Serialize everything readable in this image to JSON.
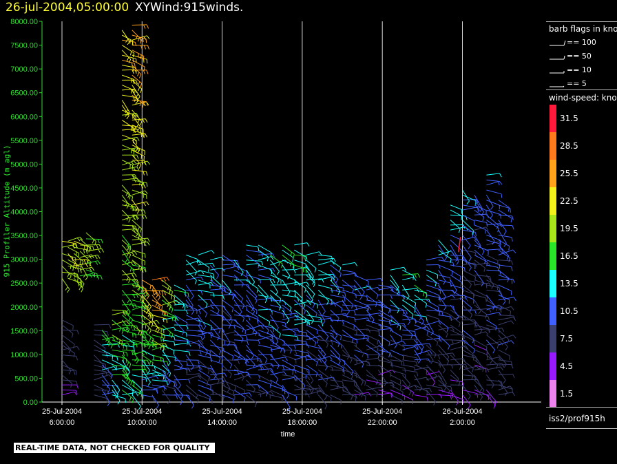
{
  "header": {
    "date": "26-jul-2004,05:00:00",
    "product": "XYWind:915winds."
  },
  "chart_data": {
    "type": "scatter",
    "title": "XYWind:915winds.",
    "xlabel": "time",
    "ylabel": "915 Profiler Altitude (m agl)",
    "x_ticks": [
      {
        "date": "25-Jul-2004",
        "time": "6:00:00"
      },
      {
        "date": "25-Jul-2004",
        "time": "10:00:00"
      },
      {
        "date": "25-Jul-2004",
        "time": "14:00:00"
      },
      {
        "date": "25-Jul-2004",
        "time": "18:00:00"
      },
      {
        "date": "25-Jul-2004",
        "time": "22:00:00"
      },
      {
        "date": "26-Jul-2004",
        "time": "2:00:00"
      }
    ],
    "y_ticks": [
      "0.00",
      "500.00",
      "1000.00",
      "1500.00",
      "2000.00",
      "2500.00",
      "3000.00",
      "3500.00",
      "4000.00",
      "4500.00",
      "5000.00",
      "5500.00",
      "6000.00",
      "6500.00",
      "7000.00",
      "7500.00",
      "8000.00"
    ],
    "ylim": [
      0,
      8000
    ],
    "grid": "vertical lines at x ticks",
    "legend_placement": "right",
    "series": [
      {
        "profiles": [
          {
            "h": 6.0,
            "top": 1800,
            "low": 6,
            "up": 9
          },
          {
            "h": 6.0,
            "range": [
              2600,
              3400
            ],
            "low": 19,
            "up": 22
          },
          {
            "h": 6.3,
            "range": [
              2600,
              3400
            ],
            "low": 19,
            "up": 22
          },
          {
            "h": 6.6,
            "range": [
              2600,
              3400
            ],
            "low": 19,
            "up": 22
          },
          {
            "h": 6.9,
            "range": [
              2650,
              3550
            ],
            "low": 18,
            "up": 21
          },
          {
            "h": 7.2,
            "range": [
              2650,
              3600
            ],
            "low": 17,
            "up": 19
          },
          {
            "h": 7.6,
            "top": 1700,
            "low": 6,
            "up": 9
          },
          {
            "h": 8.0,
            "top": 1600,
            "low": 9,
            "up": 18
          },
          {
            "h": 8.5,
            "top": 2000,
            "low": 12,
            "up": 20
          },
          {
            "h": 9.0,
            "top": 7900,
            "low": 14,
            "up": 24
          },
          {
            "h": 9.5,
            "top": 8000,
            "low": 15,
            "up": 25
          },
          {
            "h": 10.0,
            "top": 2600,
            "low": 10,
            "up": 26
          },
          {
            "h": 10.5,
            "top": 2600,
            "low": 10,
            "up": 28
          },
          {
            "h": 11.0,
            "top": 2600,
            "low": 8,
            "up": 20
          },
          {
            "h": 11.6,
            "top": 2500,
            "low": 9,
            "up": 14
          },
          {
            "h": 12.2,
            "top": 3100,
            "low": 8,
            "up": 13
          },
          {
            "h": 12.8,
            "top": 3100,
            "low": 8,
            "up": 14
          },
          {
            "h": 13.4,
            "top": 3000,
            "low": 8,
            "up": 12
          },
          {
            "h": 14.0,
            "top": 3100,
            "low": 8,
            "up": 12
          },
          {
            "h": 14.6,
            "top": 3000,
            "low": 8,
            "up": 13
          },
          {
            "h": 15.2,
            "top": 3300,
            "low": 9,
            "up": 12
          },
          {
            "h": 15.8,
            "top": 3300,
            "low": 9,
            "up": 13
          },
          {
            "h": 16.4,
            "top": 3100,
            "low": 8,
            "up": 14
          },
          {
            "h": 17.0,
            "top": 3300,
            "low": 8,
            "up": 15
          },
          {
            "h": 17.6,
            "top": 3400,
            "low": 8,
            "up": 16
          },
          {
            "h": 18.2,
            "top": 3100,
            "low": 7,
            "up": 15
          },
          {
            "h": 18.8,
            "top": 3100,
            "low": 7,
            "up": 14
          },
          {
            "h": 19.4,
            "top": 3000,
            "low": 7,
            "up": 13
          },
          {
            "h": 20.0,
            "top": 2900,
            "low": 7,
            "up": 12
          },
          {
            "h": 20.6,
            "top": 2700,
            "low": 7,
            "up": 12
          },
          {
            "h": 21.2,
            "top": 2600,
            "low": 6,
            "up": 11
          },
          {
            "h": 21.8,
            "top": 2500,
            "low": 6,
            "up": 12
          },
          {
            "h": 22.4,
            "top": 2800,
            "low": 6,
            "up": 14
          },
          {
            "h": 23.0,
            "top": 2800,
            "low": 6,
            "up": 15
          },
          {
            "h": 23.6,
            "top": 2500,
            "low": 6,
            "up": 14
          },
          {
            "h": 24.2,
            "top": 3000,
            "low": 6,
            "up": 12
          },
          {
            "h": 24.8,
            "top": 3500,
            "low": 6,
            "up": 12
          },
          {
            "h": 25.4,
            "top": 4200,
            "low": 6,
            "up": 13
          },
          {
            "h": 26.0,
            "top": 4500,
            "low": 6,
            "up": 12
          },
          {
            "h": 26.6,
            "top": 4400,
            "low": 6,
            "up": 11
          },
          {
            "h": 27.2,
            "top": 4800,
            "low": 7,
            "up": 11
          },
          {
            "h": 27.8,
            "top": 4300,
            "low": 7,
            "up": 11
          }
        ]
      }
    ]
  },
  "barb_legend": {
    "title": "barb flags in knots",
    "items": [
      "== 100",
      "== 50",
      "== 10",
      "== 5"
    ]
  },
  "colorbar": {
    "title": "wind-speed: knots",
    "levels": [
      {
        "label": "31.5",
        "color": "#ff1a3c"
      },
      {
        "label": "28.5",
        "color": "#ff7a1a"
      },
      {
        "label": "25.5",
        "color": "#ffa31a"
      },
      {
        "label": "22.5",
        "color": "#f2f21a"
      },
      {
        "label": "19.5",
        "color": "#a8e61a"
      },
      {
        "label": "16.5",
        "color": "#29e629"
      },
      {
        "label": "13.5",
        "color": "#1affff"
      },
      {
        "label": "10.5",
        "color": "#4060ff"
      },
      {
        "label": "7.5",
        "color": "#3a3f6e"
      },
      {
        "label": "4.5",
        "color": "#9a1aff"
      },
      {
        "label": "1.5",
        "color": "#ee82ee"
      }
    ]
  },
  "station": "iss2/prof915h",
  "qc_banner": "REAL-TIME DATA, NOT CHECKED FOR QUALITY"
}
